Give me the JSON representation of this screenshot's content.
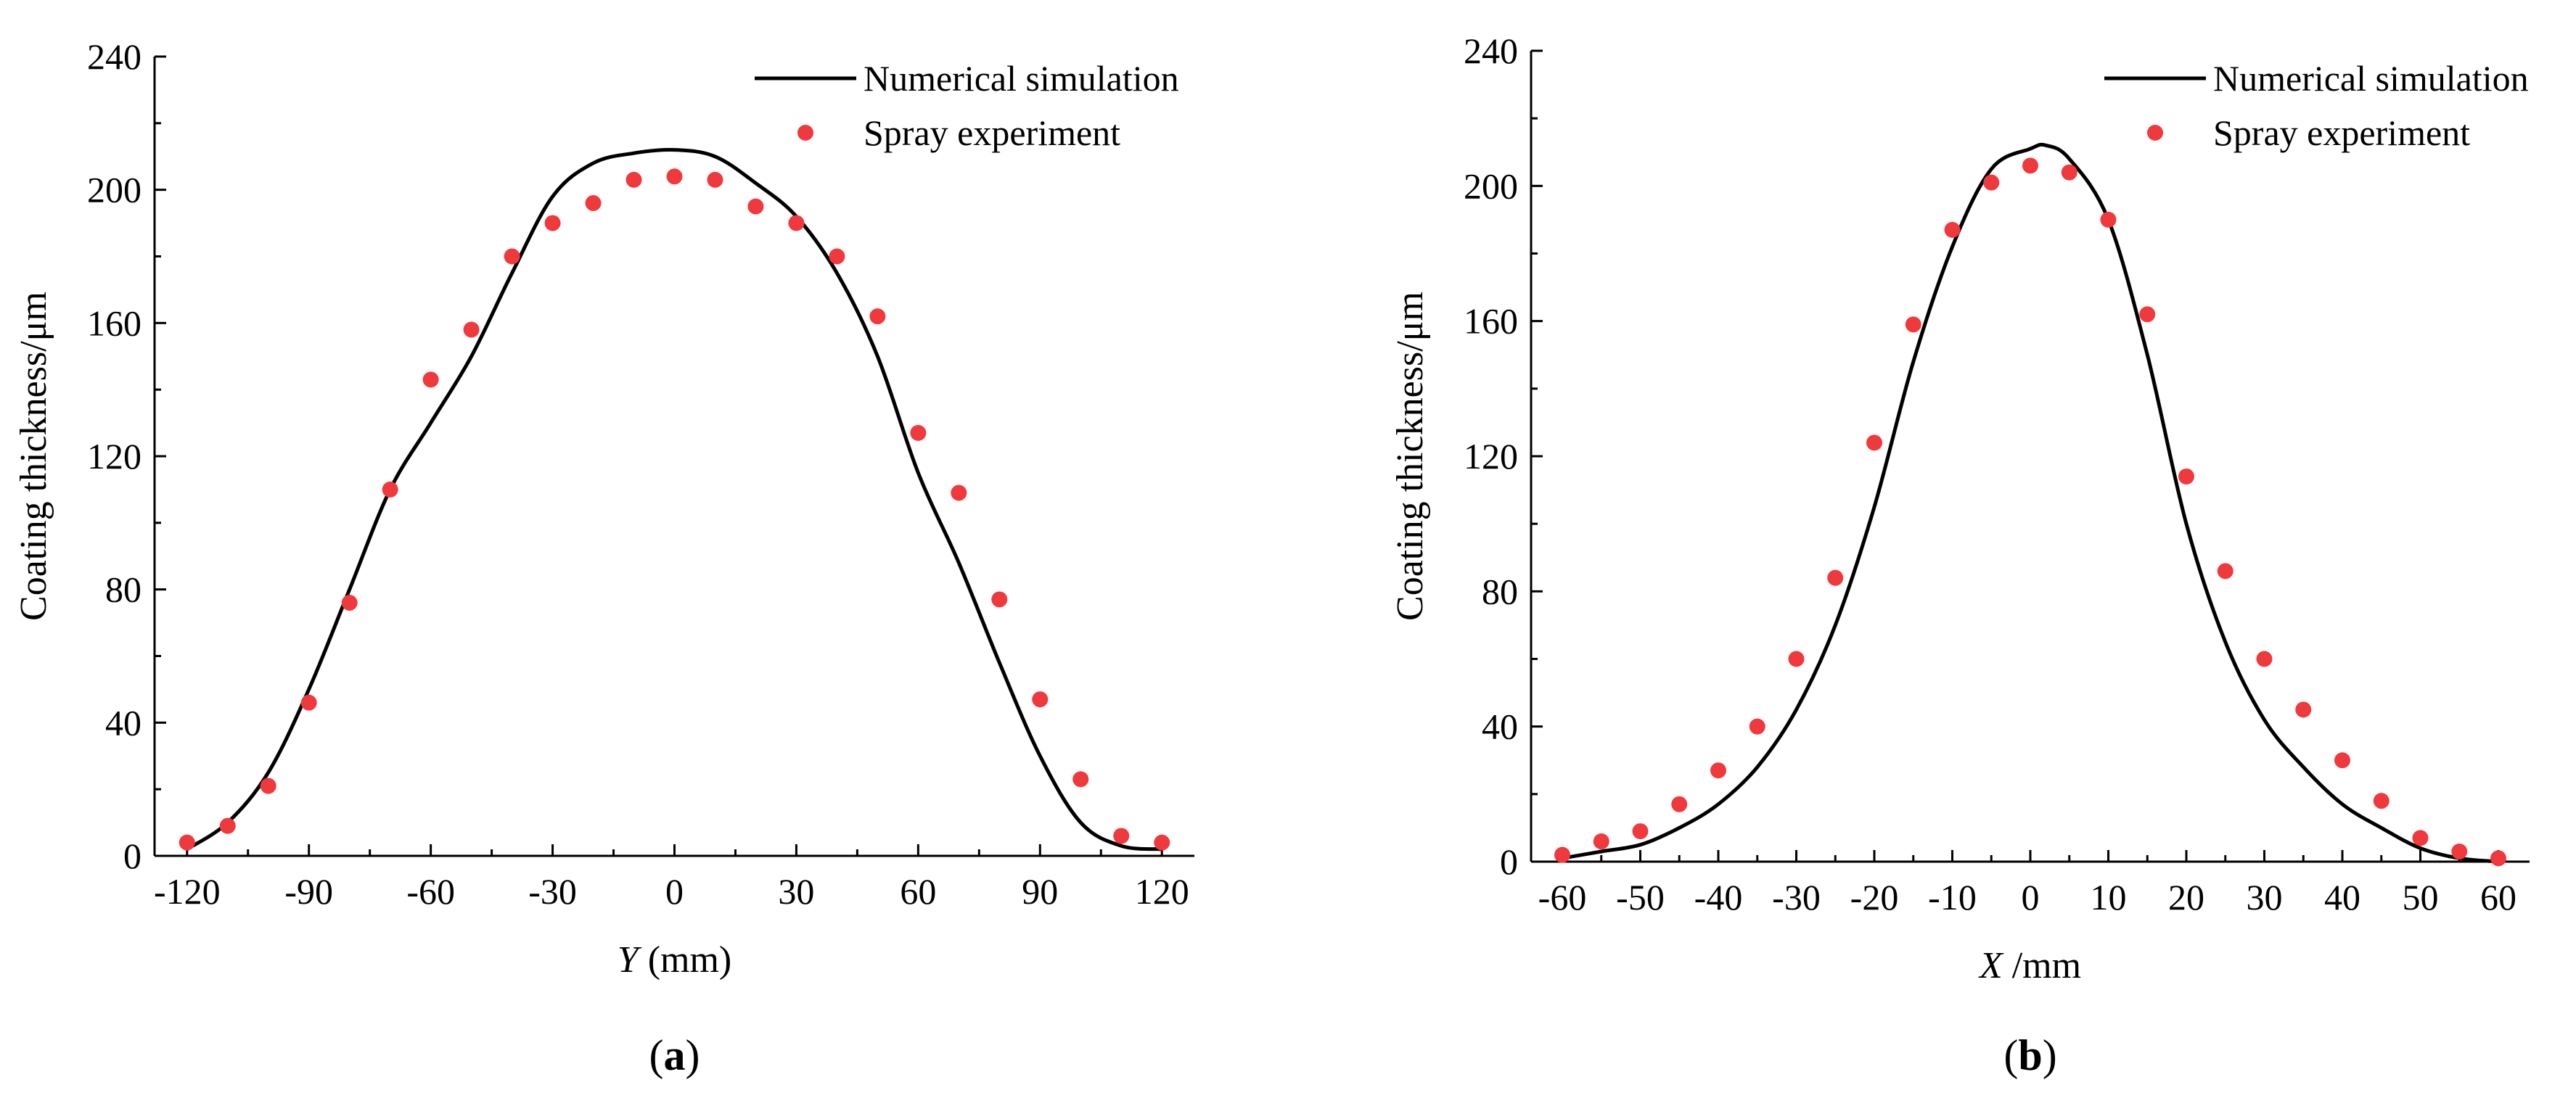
{
  "chart_data": [
    {
      "type": "line",
      "panel_label": "a",
      "xlabel_italic": "Y",
      "xlabel_rest": " (mm)",
      "ylabel": "Coating thickness/μm",
      "xlim": [
        -128,
        128
      ],
      "ylim": [
        0,
        240
      ],
      "xticks": [
        -120,
        -90,
        -60,
        -30,
        0,
        30,
        60,
        90,
        120
      ],
      "yticks": [
        0,
        40,
        80,
        120,
        160,
        200,
        240
      ],
      "legend_position": "top-right",
      "series": [
        {
          "name": "Numerical simulation",
          "kind": "line",
          "color": "#000000",
          "x": [
            -120,
            -110,
            -100,
            -90,
            -80,
            -70,
            -60,
            -50,
            -40,
            -30,
            -20,
            -10,
            0,
            10,
            20,
            30,
            40,
            50,
            60,
            70,
            80,
            90,
            100,
            110,
            120
          ],
          "y": [
            2,
            10,
            25,
            50,
            80,
            110,
            130,
            150,
            175,
            198,
            208,
            211,
            212,
            210,
            202,
            192,
            175,
            150,
            115,
            88,
            58,
            30,
            10,
            3,
            2
          ]
        },
        {
          "name": "Spray experiment",
          "kind": "scatter",
          "color": "#f0393d",
          "x": [
            -120,
            -110,
            -100,
            -90,
            -80,
            -70,
            -60,
            -50,
            -40,
            -30,
            -20,
            -10,
            0,
            10,
            20,
            30,
            40,
            50,
            60,
            70,
            80,
            90,
            100,
            110,
            120
          ],
          "y": [
            4,
            9,
            21,
            46,
            76,
            110,
            143,
            158,
            180,
            190,
            196,
            203,
            204,
            203,
            195,
            190,
            180,
            162,
            127,
            109,
            77,
            47,
            23,
            6,
            4
          ]
        }
      ]
    },
    {
      "type": "line",
      "panel_label": "b",
      "xlabel_italic": "X",
      "xlabel_rest": " /mm",
      "ylabel": "Coating thickness/μm",
      "xlim": [
        -64,
        64
      ],
      "ylim": [
        0,
        240
      ],
      "xticks": [
        -60,
        -50,
        -40,
        -30,
        -20,
        -10,
        0,
        10,
        20,
        30,
        40,
        50,
        60
      ],
      "yticks": [
        0,
        40,
        80,
        120,
        160,
        200,
        240
      ],
      "legend_position": "top-right",
      "series": [
        {
          "name": "Numerical simulation",
          "kind": "line",
          "color": "#000000",
          "x": [
            -60,
            -55,
            -50,
            -45,
            -40,
            -35,
            -30,
            -25,
            -20,
            -15,
            -10,
            -5,
            0,
            2,
            5,
            10,
            15,
            20,
            25,
            30,
            35,
            40,
            45,
            50,
            55,
            60
          ],
          "y": [
            1,
            3,
            5,
            10,
            17,
            28,
            45,
            70,
            105,
            148,
            182,
            205,
            211,
            212,
            208,
            190,
            150,
            100,
            65,
            42,
            28,
            17,
            10,
            4,
            1,
            0
          ]
        },
        {
          "name": "Spray experiment",
          "kind": "scatter",
          "color": "#f0393d",
          "x": [
            -60,
            -55,
            -50,
            -45,
            -40,
            -35,
            -30,
            -25,
            -20,
            -15,
            -10,
            -5,
            0,
            5,
            10,
            15,
            20,
            25,
            30,
            35,
            40,
            45,
            50,
            55,
            60
          ],
          "y": [
            2,
            6,
            9,
            17,
            27,
            40,
            60,
            84,
            124,
            159,
            187,
            201,
            206,
            204,
            190,
            162,
            114,
            86,
            60,
            45,
            30,
            18,
            7,
            3,
            1
          ]
        }
      ]
    }
  ]
}
